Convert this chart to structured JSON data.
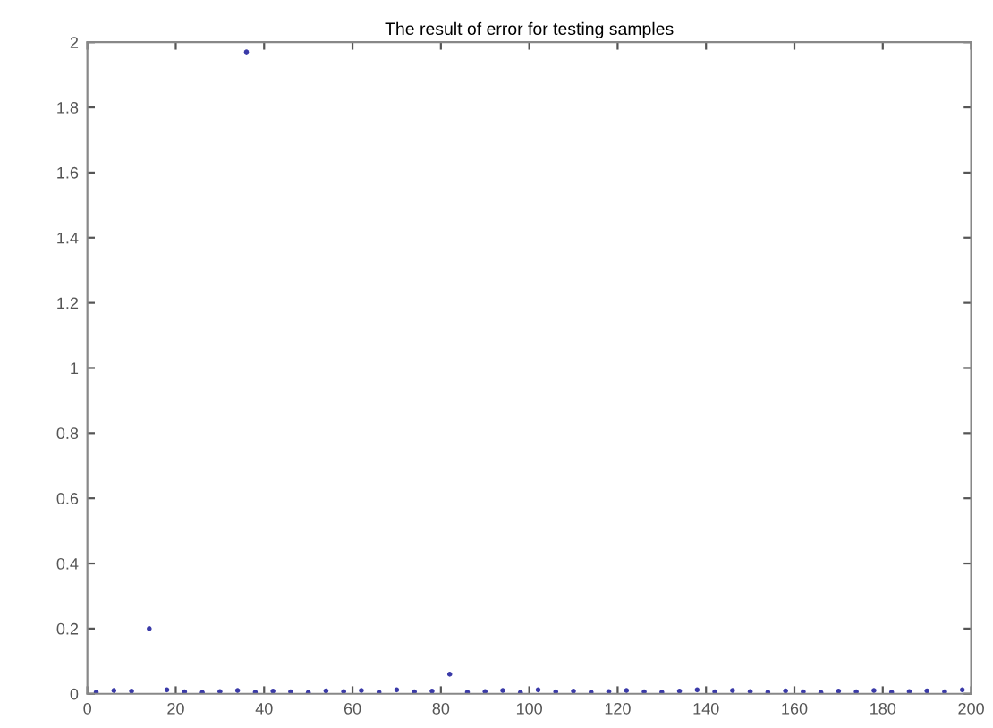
{
  "chart_data": {
    "type": "scatter",
    "title": "The result of error for testing samples",
    "x": [
      2,
      6,
      10,
      14,
      18,
      22,
      26,
      30,
      34,
      36,
      38,
      42,
      46,
      50,
      54,
      58,
      62,
      66,
      70,
      74,
      78,
      82,
      86,
      90,
      94,
      98,
      102,
      106,
      110,
      114,
      118,
      122,
      126,
      130,
      134,
      138,
      142,
      146,
      150,
      154,
      158,
      162,
      166,
      170,
      174,
      178,
      182,
      186,
      190,
      194,
      198
    ],
    "values": [
      0.005,
      0.01,
      0.008,
      0.2,
      0.012,
      0.006,
      0.004,
      0.007,
      0.01,
      1.97,
      0.005,
      0.008,
      0.006,
      0.004,
      0.009,
      0.007,
      0.01,
      0.005,
      0.012,
      0.006,
      0.008,
      0.06,
      0.005,
      0.007,
      0.01,
      0.004,
      0.012,
      0.006,
      0.008,
      0.005,
      0.007,
      0.01,
      0.006,
      0.005,
      0.008,
      0.012,
      0.006,
      0.01,
      0.007,
      0.005,
      0.009,
      0.006,
      0.004,
      0.008,
      0.006,
      0.01,
      0.005,
      0.007,
      0.009,
      0.006,
      0.012
    ],
    "color": "#3a3aa8",
    "marker": "circle",
    "xlim": [
      0,
      200
    ],
    "xticks": [
      0,
      20,
      40,
      60,
      80,
      100,
      120,
      140,
      160,
      180,
      200
    ],
    "ylim": [
      0,
      2
    ],
    "yticks": [
      0,
      0.2,
      0.4,
      0.6,
      0.8,
      1,
      1.2,
      1.4,
      1.6,
      1.8,
      2
    ],
    "grid": false
  }
}
